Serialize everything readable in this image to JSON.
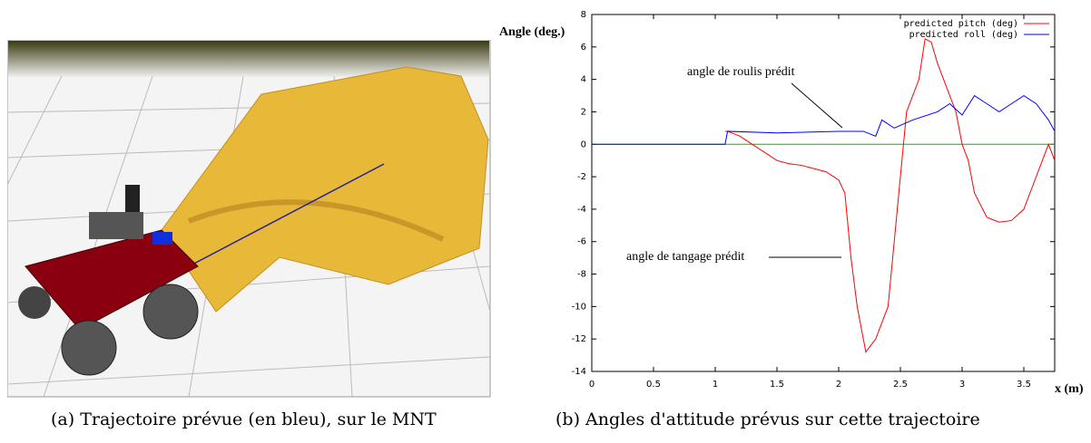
{
  "figure": {
    "caption_a": "(a) Trajectoire prévue (en bleu), sur le MNT",
    "caption_b": "(b) Angles d'attitude prévus sur cette trajectoire"
  },
  "chart_data": {
    "type": "line",
    "ylabel": "Angle (deg.)",
    "xlabel": "x (m)",
    "annotations": [
      "angle de roulis prédit",
      "angle de tangage prédit"
    ],
    "xlim": [
      0,
      3.75
    ],
    "xticks": [
      0,
      0.5,
      1,
      1.5,
      2,
      2.5,
      3,
      3.5
    ],
    "ylim": [
      -14,
      8
    ],
    "yticks": [
      -14,
      -12,
      -10,
      -8,
      -6,
      -4,
      -2,
      0,
      2,
      4,
      6,
      8
    ],
    "legend": "top-right",
    "zero_line": {
      "y": 0,
      "color": "#00c000"
    },
    "series": [
      {
        "name": "predicted pitch (deg)",
        "color": "#ff0000",
        "x": [
          1.08,
          1.1,
          1.2,
          1.3,
          1.4,
          1.5,
          1.6,
          1.7,
          1.8,
          1.9,
          2.0,
          2.05,
          2.1,
          2.15,
          2.2,
          2.22,
          2.3,
          2.4,
          2.45,
          2.5,
          2.55,
          2.65,
          2.7,
          2.75,
          2.8,
          2.85,
          2.95,
          3.0,
          3.05,
          3.1,
          3.2,
          3.3,
          3.4,
          3.5,
          3.55,
          3.65,
          3.7,
          3.75
        ],
        "values": [
          0.8,
          0.8,
          0.5,
          0,
          -0.5,
          -1,
          -1.2,
          -1.3,
          -1.5,
          -1.7,
          -2.2,
          -3,
          -7,
          -10,
          -12,
          -12.8,
          -12,
          -10,
          -6,
          -2,
          2,
          4,
          6.5,
          6.3,
          5,
          4,
          2,
          0,
          -1,
          -3,
          -4.5,
          -4.8,
          -4.7,
          -4,
          -3,
          -1,
          0,
          -1
        ]
      },
      {
        "name": "predicted roll (deg)",
        "color": "#0000ff",
        "x": [
          0,
          1.08,
          1.1,
          1.5,
          2.0,
          2.2,
          2.3,
          2.35,
          2.45,
          2.6,
          2.8,
          2.9,
          3.0,
          3.1,
          3.2,
          3.3,
          3.4,
          3.5,
          3.6,
          3.7,
          3.75
        ],
        "values": [
          0,
          0,
          0.8,
          0.7,
          0.8,
          0.8,
          0.5,
          1.5,
          1,
          1.5,
          2,
          2.5,
          1.8,
          3,
          2.5,
          2,
          2.5,
          3,
          2.5,
          1.5,
          0.8
        ]
      }
    ]
  }
}
